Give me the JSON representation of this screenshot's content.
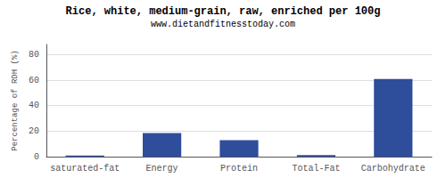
{
  "chart_data": {
    "type": "bar",
    "title": "Rice, white, medium-grain, raw, enriched per 100g",
    "subtitle": "www.dietandfitnesstoday.com",
    "categories": [
      "saturated-fat",
      "Energy",
      "Protein",
      "Total-Fat",
      "Carbohydrate"
    ],
    "values": [
      0.8,
      18.5,
      13.0,
      1.2,
      61.0
    ],
    "color": "#2e4d9b",
    "ylabel": "Percentage of RDH (%)",
    "ylim": [
      0,
      88
    ],
    "yticks": [
      0,
      20,
      40,
      60,
      80
    ],
    "grid": true
  }
}
